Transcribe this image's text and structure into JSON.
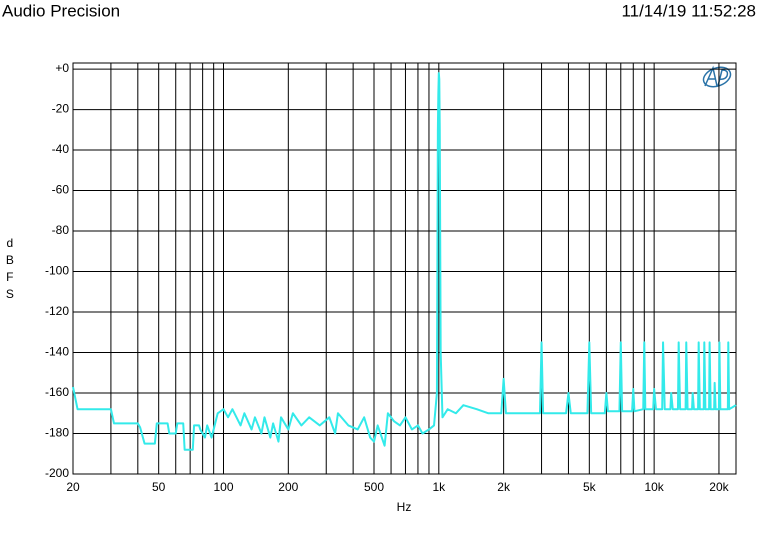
{
  "chart_data": {
    "type": "line",
    "title": "Audio Precision",
    "timestamp": "11/14/19 11:52:28",
    "x_label": "Hz",
    "y_label": "dBFS",
    "log_x": true,
    "grid": true,
    "color": "#33eaea",
    "xlim": [
      20,
      24000
    ],
    "ylim": [
      -200,
      3
    ],
    "xticks": [
      20,
      50,
      100,
      200,
      500,
      {
        "value": 1000,
        "label": "1k"
      },
      {
        "value": 2000,
        "label": "2k"
      },
      {
        "value": 5000,
        "label": "5k"
      },
      {
        "value": 10000,
        "label": "10k"
      },
      {
        "value": 20000,
        "label": "20k"
      }
    ],
    "xminor": [
      30,
      40,
      60,
      70,
      80,
      90,
      300,
      400,
      600,
      700,
      800,
      900,
      3000,
      4000,
      6000,
      7000,
      8000,
      9000
    ],
    "yticks": [
      {
        "value": 0,
        "label": "+0"
      },
      -20,
      -40,
      -60,
      -80,
      -100,
      -120,
      -140,
      -160,
      -180,
      -200
    ],
    "x": [
      20,
      21,
      30,
      31,
      40,
      41,
      43,
      48,
      49,
      55,
      56,
      60,
      61,
      65,
      66,
      72,
      73,
      77,
      78,
      82,
      84,
      88,
      90,
      94,
      100,
      105,
      110,
      120,
      125,
      135,
      140,
      150,
      155,
      165,
      170,
      180,
      185,
      200,
      210,
      230,
      250,
      280,
      310,
      330,
      340,
      380,
      420,
      450,
      480,
      500,
      520,
      560,
      580,
      620,
      660,
      700,
      750,
      800,
      840,
      900,
      950,
      980,
      990,
      995,
      1000,
      1005,
      1010,
      1020,
      1040,
      1100,
      1200,
      1300,
      1500,
      1700,
      1950,
      2000,
      2050,
      2500,
      2950,
      3000,
      3050,
      3900,
      4000,
      4100,
      4900,
      5000,
      5100,
      5900,
      6000,
      6100,
      6900,
      7000,
      7100,
      7900,
      8000,
      8100,
      8900,
      9000,
      9100,
      9900,
      10000,
      10200,
      10900,
      11000,
      11200,
      11900,
      12000,
      12200,
      12900,
      13000,
      13200,
      14000,
      14100,
      14300,
      15000,
      15100,
      15300,
      16000,
      16100,
      16300,
      17000,
      17100,
      17300,
      18000,
      18100,
      18300,
      19000,
      19100,
      19300,
      20000,
      20100,
      20300,
      22000,
      22100,
      22300,
      24000
    ],
    "values": [
      -157,
      -168,
      -168,
      -175,
      -175,
      -177,
      -185,
      -185,
      -175,
      -175,
      -180,
      -180,
      -175,
      -175,
      -188,
      -188,
      -176,
      -176,
      -178,
      -182,
      -176,
      -182,
      -178,
      -170,
      -168,
      -172,
      -168,
      -176,
      -170,
      -178,
      -172,
      -180,
      -172,
      -182,
      -175,
      -184,
      -172,
      -178,
      -170,
      -176,
      -172,
      -176,
      -172,
      -180,
      -170,
      -176,
      -178,
      -172,
      -182,
      -184,
      -176,
      -186,
      -170,
      -174,
      -176,
      -172,
      -178,
      -176,
      -180,
      -178,
      -176,
      -160,
      -30,
      -12,
      -2,
      -5,
      -30,
      -140,
      -172,
      -168,
      -170,
      -166,
      -168,
      -170,
      -170,
      -153,
      -170,
      -170,
      -170,
      -135,
      -170,
      -170,
      -160,
      -170,
      -170,
      -135,
      -170,
      -170,
      -160,
      -169,
      -169,
      -135,
      -169,
      -169,
      -158,
      -169,
      -168,
      -135,
      -168,
      -168,
      -158,
      -168,
      -168,
      -135,
      -168,
      -168,
      -160,
      -168,
      -168,
      -135,
      -168,
      -168,
      -135,
      -168,
      -168,
      -160,
      -168,
      -168,
      -135,
      -168,
      -168,
      -135,
      -168,
      -168,
      -135,
      -168,
      -168,
      -155,
      -168,
      -168,
      -135,
      -168,
      -168,
      -135,
      -168,
      -166
    ]
  }
}
